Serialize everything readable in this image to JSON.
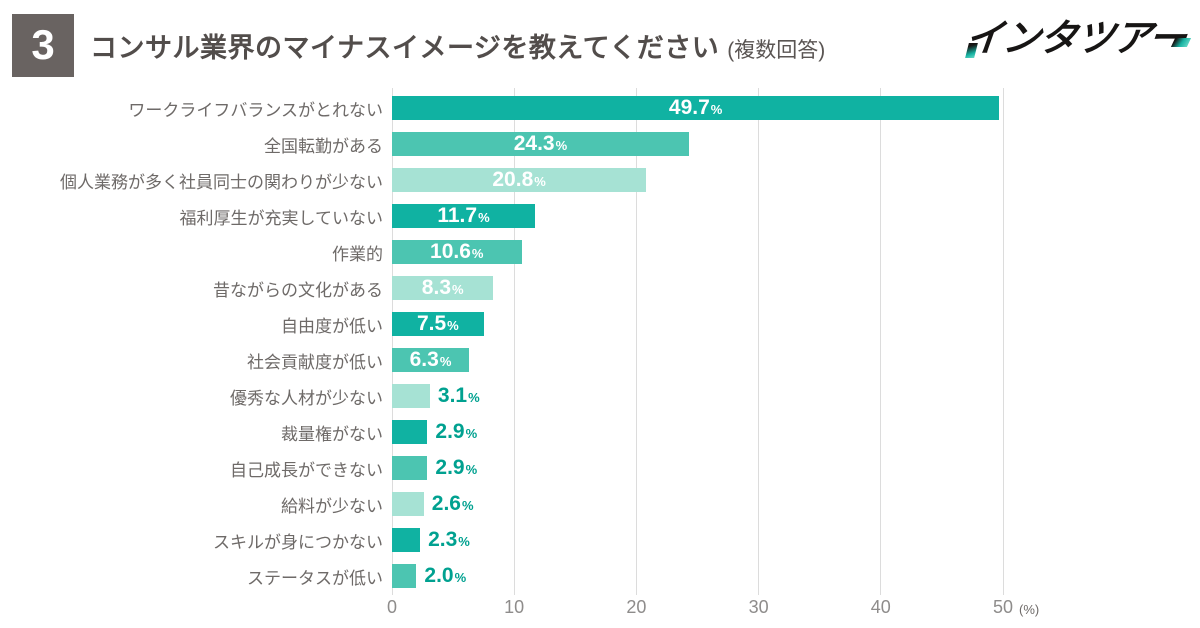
{
  "header": {
    "question_number": "3",
    "title": "コンサル業界のマイナスイメージを教えてください",
    "note": "(複数回答)",
    "logo_text": "インタツアー"
  },
  "chart_data": {
    "type": "bar",
    "orientation": "horizontal",
    "title": "コンサル業界のマイナスイメージを教えてください (複数回答)",
    "unit": "%",
    "xlim": [
      0,
      50
    ],
    "x_ticks": [
      "0",
      "10",
      "20",
      "30",
      "40",
      "50"
    ],
    "axis_unit_label": "(%)",
    "grid": "vertical",
    "categories": [
      "ワークライフバランスがとれない",
      "全国転勤がある",
      "個人業務が多く社員同士の関わりが少ない",
      "福利厚生が充実していない",
      "作業的",
      "昔ながらの文化がある",
      "自由度が低い",
      "社会貢献度が低い",
      "優秀な人材が少ない",
      "裁量権がない",
      "自己成長ができない",
      "給料が少ない",
      "スキルが身につかない",
      "ステータスが低い"
    ],
    "values": [
      49.7,
      24.3,
      20.8,
      11.7,
      10.6,
      8.3,
      7.5,
      6.3,
      3.1,
      2.9,
      2.9,
      2.6,
      2.3,
      2.0
    ],
    "bars": [
      {
        "label": "ワークライフバランスがとれない",
        "value": 49.7,
        "display": "49.7",
        "color": "dark",
        "value_label_position": "inside"
      },
      {
        "label": "全国転勤がある",
        "value": 24.3,
        "display": "24.3",
        "color": "medium",
        "value_label_position": "inside"
      },
      {
        "label": "個人業務が多く社員同士の関わりが少ない",
        "value": 20.8,
        "display": "20.8",
        "color": "light",
        "value_label_position": "inside"
      },
      {
        "label": "福利厚生が充実していない",
        "value": 11.7,
        "display": "11.7",
        "color": "dark",
        "value_label_position": "inside"
      },
      {
        "label": "作業的",
        "value": 10.6,
        "display": "10.6",
        "color": "medium",
        "value_label_position": "inside"
      },
      {
        "label": "昔ながらの文化がある",
        "value": 8.3,
        "display": "8.3",
        "color": "light",
        "value_label_position": "inside"
      },
      {
        "label": "自由度が低い",
        "value": 7.5,
        "display": "7.5",
        "color": "dark",
        "value_label_position": "inside"
      },
      {
        "label": "社会貢献度が低い",
        "value": 6.3,
        "display": "6.3",
        "color": "medium",
        "value_label_position": "inside"
      },
      {
        "label": "優秀な人材が少ない",
        "value": 3.1,
        "display": "3.1",
        "color": "light",
        "value_label_position": "outside"
      },
      {
        "label": "裁量権がない",
        "value": 2.9,
        "display": "2.9",
        "color": "dark",
        "value_label_position": "outside"
      },
      {
        "label": "自己成長ができない",
        "value": 2.9,
        "display": "2.9",
        "color": "medium",
        "value_label_position": "outside"
      },
      {
        "label": "給料が少ない",
        "value": 2.6,
        "display": "2.6",
        "color": "light",
        "value_label_position": "outside"
      },
      {
        "label": "スキルが身につかない",
        "value": 2.3,
        "display": "2.3",
        "color": "dark",
        "value_label_position": "outside"
      },
      {
        "label": "ステータスが低い",
        "value": 2.0,
        "display": "2.0",
        "color": "medium",
        "value_label_position": "outside"
      }
    ],
    "colors": {
      "bar_dark": "#10b2a2",
      "bar_medium": "#4cc5b1",
      "bar_light": "#a6e2d4",
      "value_label_inside": "#ffffff",
      "value_label_outside": "#00a190",
      "category_label": "#6e6a68",
      "gridline": "#dcdcdc",
      "axis_tick": "#8e8c8b",
      "badge_background": "#696361",
      "title_text": "#524d4b",
      "logo_accent": "#17b2a2"
    }
  }
}
